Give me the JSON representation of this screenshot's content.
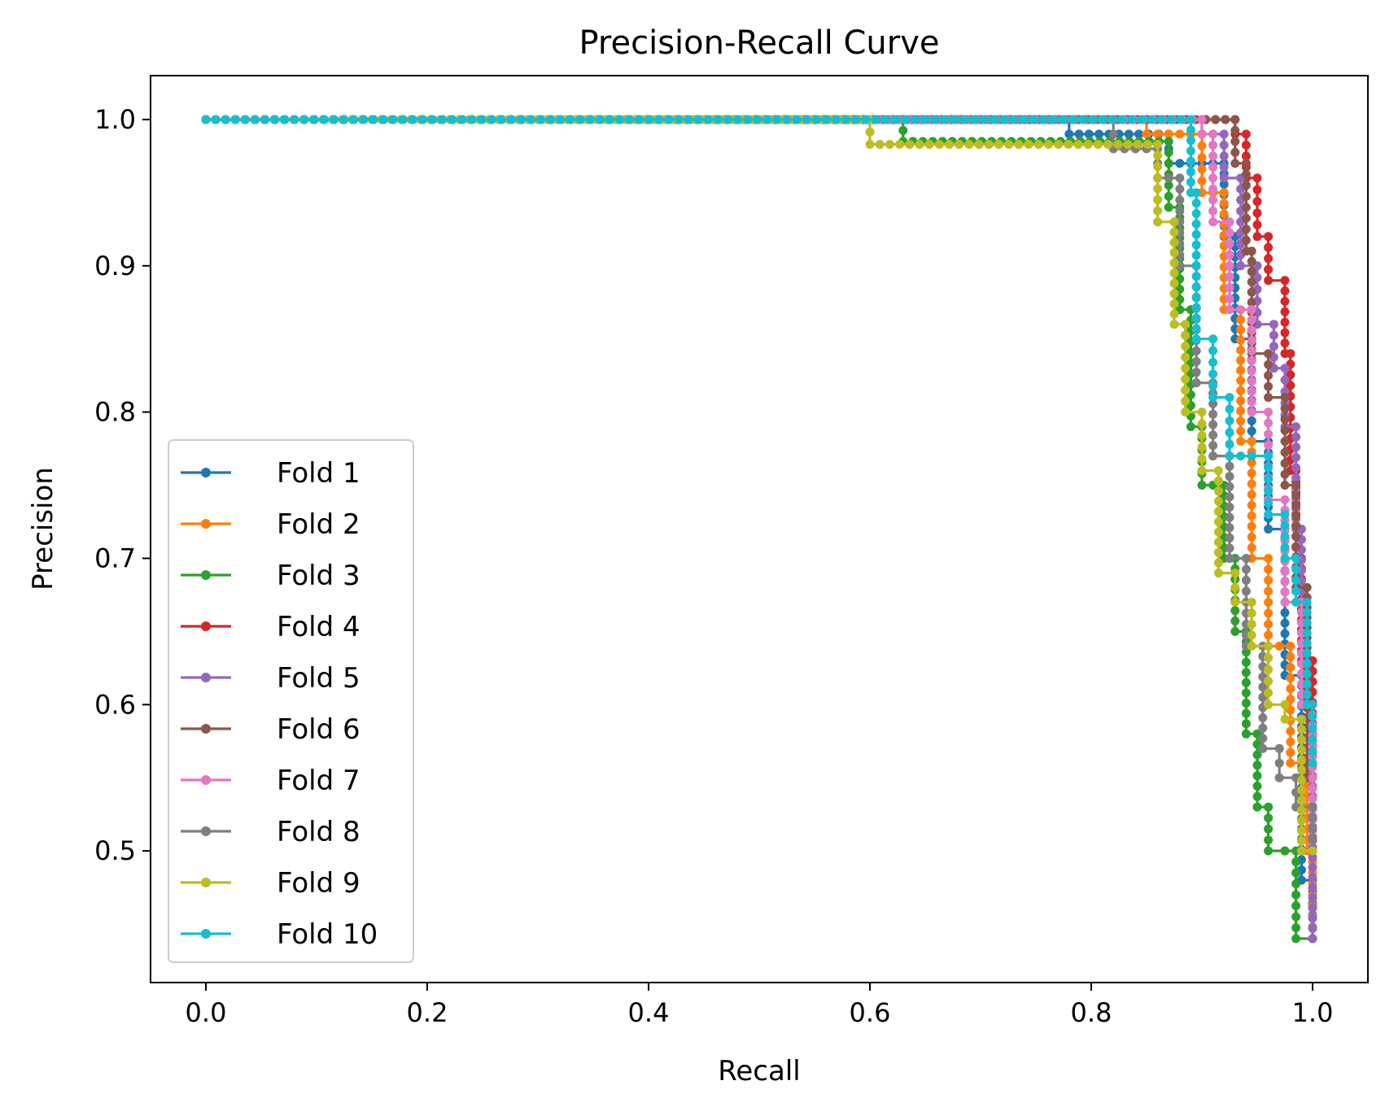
{
  "chart_data": {
    "type": "line",
    "title": "Precision-Recall Curve",
    "xlabel": "Recall",
    "ylabel": "Precision",
    "xlim": [
      -0.05,
      1.05
    ],
    "ylim": [
      0.41,
      1.03
    ],
    "xticks": [
      0.0,
      0.2,
      0.4,
      0.6,
      0.8,
      1.0
    ],
    "xtick_labels": [
      "0.0",
      "0.2",
      "0.4",
      "0.6",
      "0.8",
      "1.0"
    ],
    "yticks": [
      0.5,
      0.6,
      0.7,
      0.8,
      0.9,
      1.0
    ],
    "ytick_labels": [
      "0.5",
      "0.6",
      "0.7",
      "0.8",
      "0.9",
      "1.0"
    ],
    "legend_position": "lower-left",
    "grid": false,
    "series": [
      {
        "name": "Fold 1",
        "color": "#1f77b4",
        "points": [
          [
            0.0,
            1.0
          ],
          [
            0.78,
            1.0
          ],
          [
            0.78,
            0.99
          ],
          [
            0.87,
            0.99
          ],
          [
            0.87,
            0.97
          ],
          [
            0.92,
            0.97
          ],
          [
            0.92,
            0.92
          ],
          [
            0.93,
            0.92
          ],
          [
            0.93,
            0.85
          ],
          [
            0.945,
            0.85
          ],
          [
            0.945,
            0.78
          ],
          [
            0.96,
            0.78
          ],
          [
            0.96,
            0.72
          ],
          [
            0.975,
            0.72
          ],
          [
            0.975,
            0.62
          ],
          [
            0.99,
            0.62
          ],
          [
            0.99,
            0.48
          ],
          [
            1.0,
            0.48
          ],
          [
            1.0,
            0.44
          ]
        ]
      },
      {
        "name": "Fold 2",
        "color": "#ff7f0e",
        "points": [
          [
            0.0,
            1.0
          ],
          [
            0.85,
            1.0
          ],
          [
            0.85,
            0.99
          ],
          [
            0.9,
            0.99
          ],
          [
            0.9,
            0.95
          ],
          [
            0.92,
            0.95
          ],
          [
            0.92,
            0.87
          ],
          [
            0.935,
            0.87
          ],
          [
            0.935,
            0.78
          ],
          [
            0.945,
            0.78
          ],
          [
            0.945,
            0.7
          ],
          [
            0.96,
            0.7
          ],
          [
            0.96,
            0.64
          ],
          [
            0.98,
            0.64
          ],
          [
            0.98,
            0.56
          ],
          [
            0.995,
            0.56
          ],
          [
            0.995,
            0.5
          ],
          [
            1.0,
            0.5
          ],
          [
            1.0,
            0.44
          ]
        ]
      },
      {
        "name": "Fold 3",
        "color": "#2ca02c",
        "points": [
          [
            0.0,
            1.0
          ],
          [
            0.63,
            1.0
          ],
          [
            0.63,
            0.985
          ],
          [
            0.87,
            0.985
          ],
          [
            0.87,
            0.94
          ],
          [
            0.88,
            0.94
          ],
          [
            0.88,
            0.87
          ],
          [
            0.89,
            0.87
          ],
          [
            0.89,
            0.79
          ],
          [
            0.9,
            0.79
          ],
          [
            0.9,
            0.75
          ],
          [
            0.92,
            0.75
          ],
          [
            0.92,
            0.7
          ],
          [
            0.93,
            0.7
          ],
          [
            0.93,
            0.65
          ],
          [
            0.94,
            0.65
          ],
          [
            0.94,
            0.58
          ],
          [
            0.95,
            0.58
          ],
          [
            0.95,
            0.53
          ],
          [
            0.96,
            0.53
          ],
          [
            0.96,
            0.5
          ],
          [
            0.975,
            0.5
          ],
          [
            0.975,
            0.5
          ],
          [
            0.985,
            0.5
          ],
          [
            0.985,
            0.44
          ],
          [
            1.0,
            0.44
          ]
        ]
      },
      {
        "name": "Fold 4",
        "color": "#d62728",
        "points": [
          [
            0.0,
            1.0
          ],
          [
            0.93,
            1.0
          ],
          [
            0.93,
            0.99
          ],
          [
            0.94,
            0.99
          ],
          [
            0.94,
            0.96
          ],
          [
            0.95,
            0.96
          ],
          [
            0.95,
            0.92
          ],
          [
            0.96,
            0.92
          ],
          [
            0.96,
            0.89
          ],
          [
            0.975,
            0.89
          ],
          [
            0.975,
            0.84
          ],
          [
            0.98,
            0.84
          ],
          [
            0.98,
            0.76
          ],
          [
            0.985,
            0.76
          ],
          [
            0.985,
            0.7
          ],
          [
            0.99,
            0.7
          ],
          [
            0.99,
            0.63
          ],
          [
            1.0,
            0.63
          ],
          [
            1.0,
            0.58
          ]
        ]
      },
      {
        "name": "Fold 5",
        "color": "#9467bd",
        "points": [
          [
            0.0,
            1.0
          ],
          [
            0.9,
            1.0
          ],
          [
            0.9,
            0.99
          ],
          [
            0.92,
            0.99
          ],
          [
            0.92,
            0.96
          ],
          [
            0.935,
            0.96
          ],
          [
            0.935,
            0.9
          ],
          [
            0.95,
            0.9
          ],
          [
            0.95,
            0.86
          ],
          [
            0.965,
            0.86
          ],
          [
            0.965,
            0.83
          ],
          [
            0.975,
            0.83
          ],
          [
            0.975,
            0.79
          ],
          [
            0.985,
            0.79
          ],
          [
            0.985,
            0.72
          ],
          [
            0.99,
            0.72
          ],
          [
            0.99,
            0.6
          ],
          [
            1.0,
            0.6
          ],
          [
            1.0,
            0.44
          ]
        ]
      },
      {
        "name": "Fold 6",
        "color": "#8c564b",
        "points": [
          [
            0.0,
            1.0
          ],
          [
            0.93,
            1.0
          ],
          [
            0.93,
            0.97
          ],
          [
            0.94,
            0.97
          ],
          [
            0.94,
            0.91
          ],
          [
            0.945,
            0.91
          ],
          [
            0.945,
            0.84
          ],
          [
            0.96,
            0.84
          ],
          [
            0.96,
            0.81
          ],
          [
            0.975,
            0.81
          ],
          [
            0.975,
            0.75
          ],
          [
            0.985,
            0.75
          ],
          [
            0.985,
            0.68
          ],
          [
            0.995,
            0.68
          ],
          [
            0.995,
            0.55
          ],
          [
            1.0,
            0.55
          ],
          [
            1.0,
            0.5
          ]
        ]
      },
      {
        "name": "Fold 7",
        "color": "#e377c2",
        "points": [
          [
            0.0,
            1.0
          ],
          [
            0.9,
            1.0
          ],
          [
            0.9,
            0.99
          ],
          [
            0.91,
            0.99
          ],
          [
            0.91,
            0.93
          ],
          [
            0.925,
            0.93
          ],
          [
            0.925,
            0.87
          ],
          [
            0.945,
            0.87
          ],
          [
            0.945,
            0.8
          ],
          [
            0.96,
            0.8
          ],
          [
            0.96,
            0.74
          ],
          [
            0.975,
            0.74
          ],
          [
            0.975,
            0.67
          ],
          [
            0.99,
            0.67
          ],
          [
            0.99,
            0.6
          ],
          [
            1.0,
            0.6
          ],
          [
            1.0,
            0.5
          ]
        ]
      },
      {
        "name": "Fold 8",
        "color": "#7f7f7f",
        "points": [
          [
            0.0,
            1.0
          ],
          [
            0.82,
            1.0
          ],
          [
            0.82,
            0.98
          ],
          [
            0.86,
            0.98
          ],
          [
            0.86,
            0.96
          ],
          [
            0.88,
            0.96
          ],
          [
            0.88,
            0.9
          ],
          [
            0.895,
            0.9
          ],
          [
            0.895,
            0.82
          ],
          [
            0.91,
            0.82
          ],
          [
            0.91,
            0.77
          ],
          [
            0.925,
            0.77
          ],
          [
            0.925,
            0.7
          ],
          [
            0.94,
            0.7
          ],
          [
            0.94,
            0.64
          ],
          [
            0.955,
            0.64
          ],
          [
            0.955,
            0.57
          ],
          [
            0.97,
            0.57
          ],
          [
            0.97,
            0.55
          ],
          [
            0.985,
            0.55
          ],
          [
            0.985,
            0.53
          ],
          [
            1.0,
            0.53
          ],
          [
            1.0,
            0.5
          ]
        ]
      },
      {
        "name": "Fold 9",
        "color": "#bcbd22",
        "points": [
          [
            0.0,
            1.0
          ],
          [
            0.6,
            1.0
          ],
          [
            0.6,
            0.983
          ],
          [
            0.86,
            0.983
          ],
          [
            0.86,
            0.93
          ],
          [
            0.875,
            0.93
          ],
          [
            0.875,
            0.86
          ],
          [
            0.885,
            0.86
          ],
          [
            0.885,
            0.8
          ],
          [
            0.9,
            0.8
          ],
          [
            0.9,
            0.76
          ],
          [
            0.915,
            0.76
          ],
          [
            0.915,
            0.69
          ],
          [
            0.93,
            0.69
          ],
          [
            0.93,
            0.67
          ],
          [
            0.945,
            0.67
          ],
          [
            0.945,
            0.64
          ],
          [
            0.96,
            0.64
          ],
          [
            0.96,
            0.6
          ],
          [
            0.975,
            0.6
          ],
          [
            0.975,
            0.59
          ],
          [
            0.99,
            0.59
          ],
          [
            0.99,
            0.5
          ],
          [
            1.0,
            0.5
          ]
        ]
      },
      {
        "name": "Fold 10",
        "color": "#17becf",
        "points": [
          [
            0.0,
            1.0
          ],
          [
            0.89,
            1.0
          ],
          [
            0.89,
            0.95
          ],
          [
            0.895,
            0.95
          ],
          [
            0.895,
            0.85
          ],
          [
            0.91,
            0.85
          ],
          [
            0.91,
            0.81
          ],
          [
            0.925,
            0.81
          ],
          [
            0.925,
            0.77
          ],
          [
            0.945,
            0.77
          ],
          [
            0.945,
            0.77
          ],
          [
            0.96,
            0.77
          ],
          [
            0.96,
            0.73
          ],
          [
            0.975,
            0.73
          ],
          [
            0.975,
            0.7
          ],
          [
            0.985,
            0.7
          ],
          [
            0.985,
            0.67
          ],
          [
            0.995,
            0.67
          ],
          [
            0.995,
            0.6
          ],
          [
            1.0,
            0.6
          ],
          [
            1.0,
            0.56
          ]
        ]
      }
    ]
  }
}
